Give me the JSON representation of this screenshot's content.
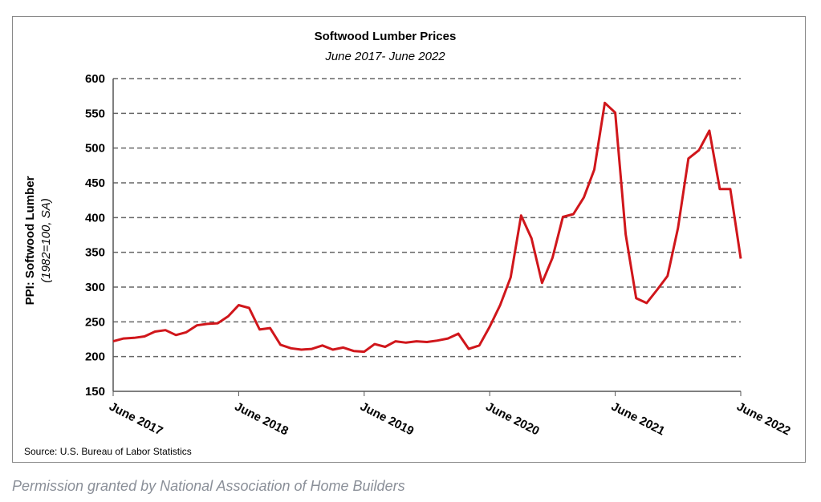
{
  "chart_data": {
    "type": "line",
    "title": "Softwood Lumber Prices",
    "subtitle": "June 2017- June 2022",
    "ylabel": "PPI: Softwood Lumber",
    "ylabel2": "(1982=100, SA)",
    "xlabel": "",
    "ylim": [
      150,
      600
    ],
    "yticks": [
      150,
      200,
      250,
      300,
      350,
      400,
      450,
      500,
      550,
      600
    ],
    "xticks": [
      "June 2017",
      "June 2018",
      "June 2019",
      "June 2020",
      "June 2021",
      "June 2022"
    ],
    "grid": true,
    "series": [
      {
        "name": "PPI: Softwood Lumber",
        "color": "#d0161b",
        "values": [
          222,
          226,
          227,
          229,
          236,
          238,
          231,
          235,
          245,
          247,
          248,
          258,
          274,
          270,
          239,
          241,
          217,
          212,
          210,
          211,
          216,
          210,
          213,
          208,
          207,
          218,
          214,
          222,
          220,
          222,
          221,
          223,
          226,
          233,
          211,
          216,
          243,
          274,
          314,
          403,
          370,
          306,
          342,
          401,
          405,
          429,
          469,
          565,
          551,
          376,
          284,
          277,
          296,
          316,
          385,
          485,
          497,
          525,
          441,
          441,
          341
        ]
      }
    ],
    "source": "Source: U.S. Bureau of Labor Statistics"
  },
  "caption": "Permission granted by National Association of Home Builders"
}
